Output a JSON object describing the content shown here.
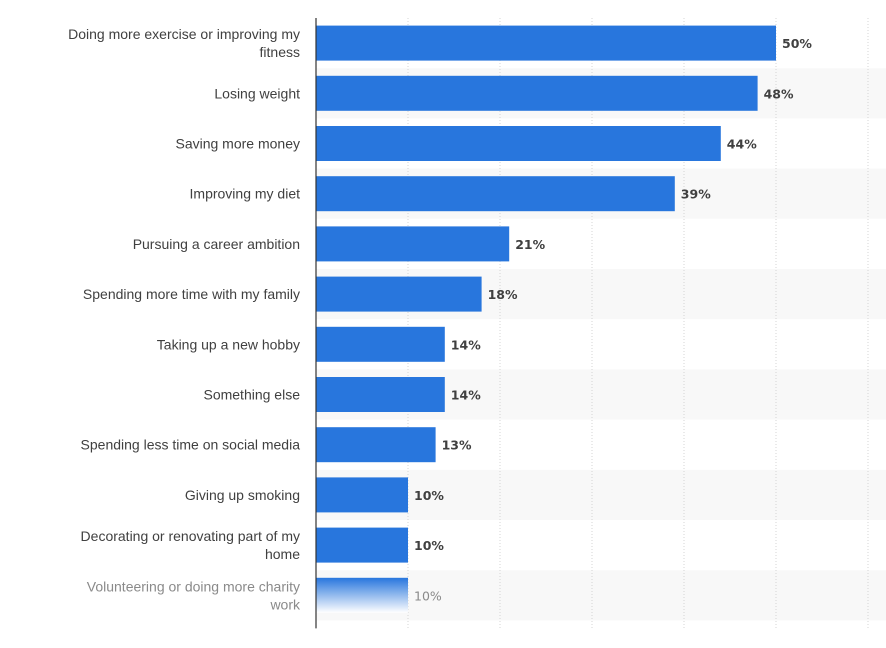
{
  "chart_data": {
    "type": "bar",
    "orientation": "horizontal",
    "categories": [
      "Doing more exercise or improving my fitness",
      "Losing weight",
      "Saving more money",
      "Improving my diet",
      "Pursuing a career ambition",
      "Spending more time with my family",
      "Taking up a new hobby",
      "Something else",
      "Spending less time on social media",
      "Giving up smoking",
      "Decorating or renovating part of my home",
      "Volunteering or doing more charity work"
    ],
    "values": [
      50,
      48,
      44,
      39,
      21,
      18,
      14,
      14,
      13,
      10,
      10,
      10
    ],
    "value_labels": [
      "50%",
      "48%",
      "44%",
      "39%",
      "21%",
      "18%",
      "14%",
      "14%",
      "13%",
      "10%",
      "10%",
      "10%"
    ],
    "xlim": [
      0,
      60
    ],
    "grid": true,
    "bar_color": "#2876dd",
    "title": "",
    "xlabel": "",
    "ylabel": ""
  }
}
